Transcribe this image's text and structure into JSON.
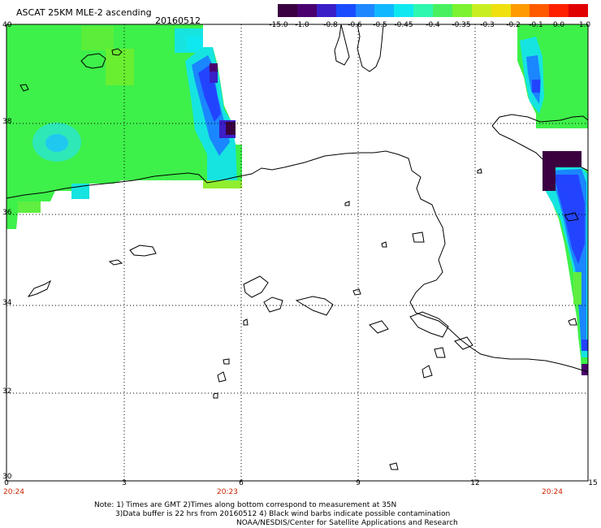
{
  "header": {
    "title": "ASCAT 25KM MLE-2 ascending",
    "date": "20160512"
  },
  "colorbar": {
    "colors": [
      "#3a0040",
      "#4a006e",
      "#3a1fc8",
      "#1a4cff",
      "#1f87ff",
      "#12b8ff",
      "#10e8f0",
      "#2ef7b0",
      "#48f060",
      "#7cf230",
      "#c9ee20",
      "#f0e010",
      "#ff9a00",
      "#ff5a00",
      "#ff2000",
      "#e00000"
    ],
    "tick_labels": [
      "-15.0",
      "-1.0",
      "-0.8",
      "-0.6",
      "-0.5",
      "-0.45",
      "-0.4",
      "-0.35",
      "-0.3",
      "-0.2",
      "-0.1",
      "0.0",
      "1.0"
    ]
  },
  "axes": {
    "y_labels": [
      "40",
      "38",
      "36",
      "34",
      "32",
      "30"
    ],
    "x_labels": [
      "0",
      "3",
      "6",
      "9",
      "12",
      "15"
    ],
    "time_labels": [
      "20:24",
      "20:23",
      "20:24"
    ]
  },
  "notes": {
    "line1": "Note: 1) Times are GMT 2)Times along bottom correspond to measurement at 35N",
    "line2": "3)Data buffer is 22 hrs from 20160512 4) Black wind barbs indicate possible contamination",
    "line3": "NOAA/NESDIS/Center for Satellite Applications and Research"
  }
}
